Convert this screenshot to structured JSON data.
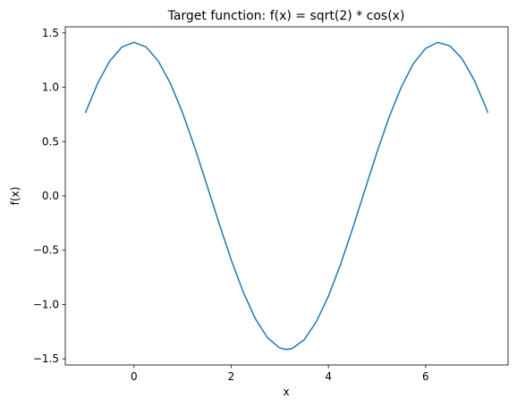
{
  "chart_data": {
    "type": "line",
    "title": "Target function: f(x) = sqrt(2) * cos(x)",
    "xlabel": "x",
    "ylabel": "f(x)",
    "x": [
      -1.0,
      -0.75,
      -0.5,
      -0.25,
      0.0,
      0.25,
      0.5,
      0.75,
      1.0,
      1.25,
      1.5,
      1.75,
      2.0,
      2.25,
      2.5,
      2.75,
      3.0,
      3.14,
      3.25,
      3.5,
      3.75,
      4.0,
      4.25,
      4.5,
      4.75,
      5.0,
      5.25,
      5.5,
      5.75,
      6.0,
      6.25,
      6.5,
      6.75,
      7.0,
      7.25,
      7.283
    ],
    "series": [
      {
        "color": "#1f77b4",
        "values": [
          0.764,
          1.035,
          1.241,
          1.37,
          1.414,
          1.37,
          1.241,
          1.035,
          0.764,
          0.446,
          0.1,
          -0.252,
          -0.589,
          -0.888,
          -1.133,
          -1.307,
          -1.4,
          -1.414,
          -1.406,
          -1.324,
          -1.16,
          -0.924,
          -0.631,
          -0.298,
          0.053,
          0.401,
          0.725,
          1.002,
          1.218,
          1.358,
          1.413,
          1.381,
          1.263,
          1.066,
          0.805,
          0.764
        ]
      }
    ],
    "xlim": [
      -1.414,
      7.697
    ],
    "ylim": [
      -1.556,
      1.556
    ],
    "xticks": [
      0,
      2,
      4,
      6
    ],
    "yticks": [
      {
        "value": -1.5,
        "label": "−1.5"
      },
      {
        "value": -1.0,
        "label": "−1.0"
      },
      {
        "value": -0.5,
        "label": "−0.5"
      },
      {
        "value": 0.0,
        "label": "0.0"
      },
      0.5,
      {
        "value": 1.0,
        "label": "1.0"
      },
      1.5
    ],
    "grid": false
  }
}
